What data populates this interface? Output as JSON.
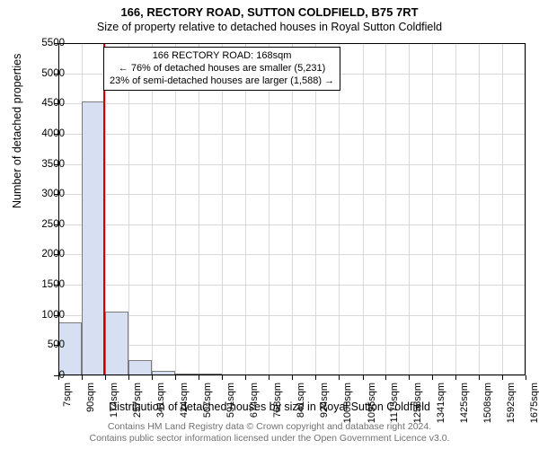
{
  "title": "166, RECTORY ROAD, SUTTON COLDFIELD, B75 7RT",
  "subtitle": "Size of property relative to detached houses in Royal Sutton Coldfield",
  "ylabel": "Number of detached properties",
  "xlabel": "Distribution of detached houses by size in Royal Sutton Coldfield",
  "annotation": {
    "line1": "166 RECTORY ROAD: 168sqm",
    "line2": "← 76% of detached houses are smaller (5,231)",
    "line3": "23% of semi-detached houses are larger (1,588) →"
  },
  "footer": {
    "line1": "Contains HM Land Registry data © Crown copyright and database right 2024.",
    "line2": "Contains public sector information licensed under the Open Government Licence v3.0.",
    "color": "#717171"
  },
  "chart": {
    "type": "histogram",
    "ylim": [
      0,
      5500
    ],
    "ytick_step": 500,
    "xticks": [
      7,
      90,
      174,
      257,
      341,
      424,
      507,
      591,
      674,
      758,
      841,
      924,
      1008,
      1095,
      1175,
      1258,
      1341,
      1425,
      1508,
      1592,
      1675
    ],
    "xtick_unit": "sqm",
    "background_color": "#ffffff",
    "grid_color": "#d8d8d8",
    "axis_color": "#000000",
    "bar_fill": "#d6e0f2",
    "bar_border": "#7b7b7b",
    "marker_color": "#d40000",
    "marker_position": 168,
    "values": [
      880,
      4540,
      1060,
      260,
      80,
      30,
      25,
      15,
      10,
      8,
      5,
      5,
      3,
      3,
      2,
      2,
      2,
      1,
      1,
      1
    ]
  }
}
